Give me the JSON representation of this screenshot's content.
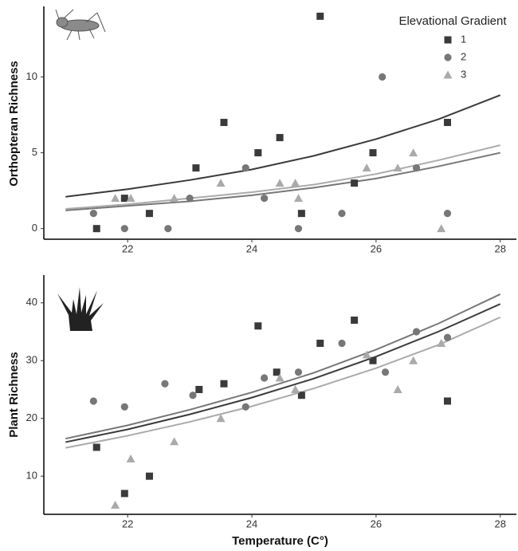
{
  "chart_data": [
    {
      "type": "scatter",
      "ylabel": "Orthopteran Richness",
      "legend": "top-right",
      "legend_title": "Elevational Gradient",
      "xlim": [
        20.65,
        28.26
      ],
      "ylim": [
        -0.7,
        14.65
      ],
      "xticks": [
        22,
        24,
        26,
        28
      ],
      "yticks": [
        0,
        5,
        10
      ],
      "fit_x": [
        21,
        22,
        23,
        24,
        25,
        26,
        27,
        28
      ],
      "series": [
        {
          "name": "1",
          "color": "#3a3a3a",
          "marker": "square",
          "x": [
            21.5,
            21.95,
            22.35,
            23.1,
            23.55,
            24.1,
            24.45,
            24.8,
            25.1,
            25.65,
            25.95,
            27.15
          ],
          "values": [
            0,
            2,
            1,
            4,
            7,
            5,
            6,
            1,
            14,
            3,
            5,
            7
          ],
          "fit_values": [
            2.1,
            2.6,
            3.2,
            3.9,
            4.8,
            5.9,
            7.2,
            8.8
          ]
        },
        {
          "name": "2",
          "color": "#777777",
          "marker": "circle",
          "x": [
            21.45,
            21.95,
            22.65,
            23.0,
            23.9,
            24.2,
            24.75,
            25.45,
            26.1,
            26.65,
            27.15
          ],
          "values": [
            1,
            0,
            0,
            2,
            4,
            2,
            0,
            1,
            10,
            4,
            1
          ],
          "fit_values": [
            1.2,
            1.5,
            1.8,
            2.2,
            2.7,
            3.3,
            4.1,
            5.0
          ]
        },
        {
          "name": "3",
          "color": "#aaaaaa",
          "marker": "triangle",
          "x": [
            21.8,
            22.05,
            22.75,
            23.5,
            24.45,
            24.7,
            24.75,
            25.85,
            26.35,
            26.6,
            27.05
          ],
          "values": [
            2,
            2,
            2,
            3,
            3,
            3,
            2,
            4,
            4,
            5,
            0
          ],
          "fit_values": [
            1.3,
            1.6,
            2.0,
            2.4,
            2.9,
            3.6,
            4.5,
            5.5
          ]
        }
      ]
    },
    {
      "type": "scatter",
      "ylabel": "Plant Richness",
      "xlabel": "Temperature (C°)",
      "xlim": [
        20.65,
        28.26
      ],
      "ylim": [
        3.4,
        44.8
      ],
      "xticks": [
        22,
        24,
        26,
        28
      ],
      "yticks": [
        10,
        20,
        30,
        40
      ],
      "fit_x": [
        21,
        22,
        23,
        24,
        25,
        26,
        27,
        28
      ],
      "series": [
        {
          "color": "#3a3a3a",
          "marker": "square",
          "x": [
            21.5,
            21.95,
            22.35,
            23.15,
            23.55,
            24.1,
            24.4,
            24.8,
            25.1,
            25.65,
            25.95,
            27.15
          ],
          "values": [
            15,
            7,
            10,
            25,
            26,
            36,
            28,
            24,
            33,
            37,
            30,
            23
          ],
          "fit_values": [
            15.9,
            18.1,
            20.7,
            23.6,
            26.9,
            30.7,
            35.0,
            39.8
          ]
        },
        {
          "color": "#777777",
          "marker": "circle",
          "x": [
            21.45,
            21.95,
            22.6,
            23.05,
            23.9,
            24.2,
            24.75,
            25.45,
            26.15,
            26.65,
            27.15
          ],
          "values": [
            23,
            22,
            26,
            24,
            22,
            27,
            28,
            33,
            28,
            35,
            34
          ],
          "fit_values": [
            16.5,
            18.8,
            21.5,
            24.5,
            27.9,
            31.9,
            36.4,
            41.5
          ]
        },
        {
          "color": "#aaaaaa",
          "marker": "triangle",
          "x": [
            21.8,
            22.05,
            22.75,
            23.5,
            24.45,
            24.7,
            25.85,
            26.35,
            26.6,
            27.05
          ],
          "values": [
            5,
            13,
            16,
            20,
            27,
            25,
            31,
            25,
            30,
            33
          ],
          "fit_values": [
            14.9,
            17.0,
            19.4,
            22.1,
            25.2,
            28.7,
            32.7,
            37.5
          ]
        }
      ]
    }
  ]
}
